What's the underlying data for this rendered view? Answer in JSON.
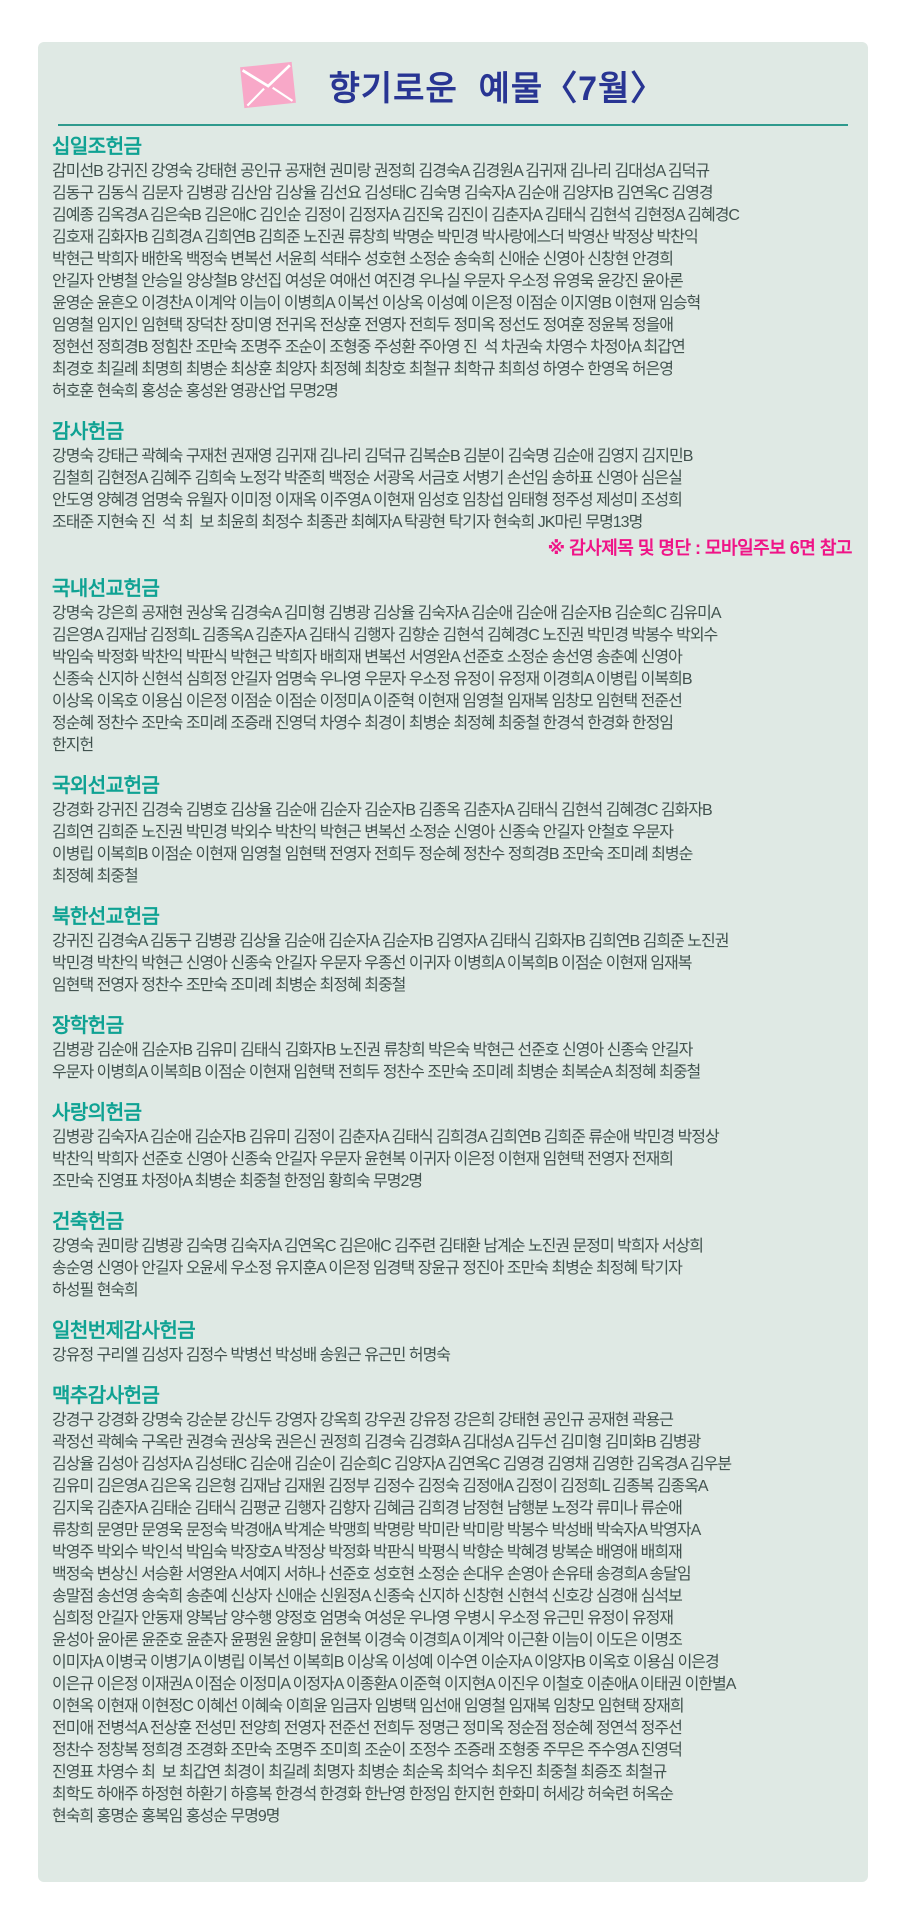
{
  "header": {
    "title": "향기로운  예물〈7월〉",
    "icon": "envelope-icon"
  },
  "colors": {
    "panel_bg": "#dfe9e4",
    "title_blue": "#283593",
    "section_teal": "#0fa293",
    "name_text": "#41524e",
    "note_pink": "#ef1487",
    "envelope_pink": "#f8a8c8"
  },
  "sections": [
    {
      "id": "tithe",
      "title": "십일조헌금",
      "lines": [
        "감미선B 강귀진 강영숙 강태현 공인규 공재현 권미랑 권정희 김경숙A 김경원A 김귀재 김나리 김대성A 김덕규",
        "김동구 김동식 김문자 김병광 김산암 김상율 김선요 김성태C 김숙명 김숙자A 김순애 김양자B 김연옥C 김영경",
        "김예종 김옥경A 김은숙B 김은애C 김인순 김정이 김정자A 김진욱 김진이 김춘자A 김태식 김현석 김현정A 김혜경C",
        "김호재 김화자B 김희경A 김희연B 김희준 노진권 류창희 박명순 박민경 박사랑에스더 박영산 박정상 박찬익",
        "박현근 박희자 배한옥 백정숙 변복선 서윤희 석태수 성호현 소정순 송숙희 신애순 신영아 신창현 안경희",
        "안길자 안병철 안승일 양상철B 양선집 여성운 여애선 여진경 우나실 우문자 우소정 유영욱 윤강진 윤아론",
        "윤영순 윤흔오 이경찬A 이계악 이늠이 이병희A 이복선 이상옥 이성예 이은정 이점순 이지영B 이현재 임승혁",
        "임영철 임지인 임현택 장덕찬 장미영 전귀옥 전상훈 전영자 전희두 정미옥 정선도 정여훈 정윤복 정을애",
        "정현선 정희경B 정힘찬 조만숙 조명주 조순이 조형중 주성환 주아영 진  석 차권숙 차영수 차정아A 최갑연",
        "최경호 최길례 최명희 최병순 최상훈 최양자 최정혜 최창호 최철규 최학규 최희성 하영수 한영옥 허은영",
        "허호훈 현숙희 홍성순 홍성완 영광산업 무명2명"
      ]
    },
    {
      "id": "thanksgiving",
      "title": "감사헌금",
      "lines": [
        "강명숙 강태근 곽혜숙 구재천 권재영 김귀재 김나리 김덕규 김복순B 김분이 김숙명 김순애 김영지 김지민B",
        "김철희 김현정A 김혜주 김희숙 노정각 박준희 백정순 서광옥 서금호 서병기 손선임 송하표 신영아 심은실",
        "안도영 양혜경 엄명숙 유월자 이미정 이재옥 이주영A 이현재 임성호 임창섭 임태형 정주성 제성미 조성희",
        "조태준 지현숙 진  석 최  보 최윤희 최정수 최종관 최혜자A 탁광현 탁기자 현숙희 JK마린 무명13명"
      ],
      "note": "※ 감사제목 및 명단 : 모바일주보 6면 참고"
    },
    {
      "id": "domestic-mission",
      "title": "국내선교헌금",
      "lines": [
        "강명숙 강은희 공재현 권상욱 김경숙A 김미형 김병광 김상율 김숙자A 김순애 김순애 김순자B 김순희C 김유미A",
        "김은영A 김재남 김정희L 김종옥A 김춘자A 김태식 김행자 김향순 김현석 김혜경C 노진권 박민경 박봉수 박외수",
        "박임숙 박정화 박찬익 박판식 박현근 박희자 배희재 변복선 서영완A 선준호 소정순 송선영 송춘예 신영아",
        "신종숙 신지하 신현석 심희정 안길자 엄명숙 우나영 우문자 우소정 유정이 유정재 이경희A 이병립 이복희B",
        "이상옥 이옥호 이용심 이은정 이점순 이점순 이정미A 이준혁 이현재 임영철 임재복 임창모 임현택 전준선",
        "정순혜 정찬수 조만숙 조미례 조증래 진영덕 차영수 최경이 최병순 최정혜 최중철 한경석 한경화 한정임",
        "한지헌"
      ]
    },
    {
      "id": "overseas-mission",
      "title": "국외선교헌금",
      "lines": [
        "강경화 강귀진 김경숙 김병호 김상율 김순애 김순자 김순자B 김종옥 김춘자A 김태식 김현석 김혜경C 김화자B",
        "김희연 김희준 노진권 박민경 박외수 박찬익 박현근 변복선 소정순 신영아 신종숙 안길자 안철호 우문자",
        "이병립 이복희B 이점순 이현재 임영철 임현택 전영자 전희두 정순혜 정찬수 정희경B 조만숙 조미례 최병순",
        "최정혜 최중철"
      ]
    },
    {
      "id": "nk-mission",
      "title": "북한선교헌금",
      "lines": [
        "강귀진 김경숙A 김동구 김병광 김상율 김순애 김순자A 김순자B 김영자A 김태식 김화자B 김희연B 김희준 노진권",
        "박민경 박찬익 박현근 신영아 신종숙 안길자 우문자 우종선 이귀자 이병희A 이복희B 이점순 이현재 임재복",
        "임현택 전영자 정찬수 조만숙 조미례 최병순 최정혜 최중철"
      ]
    },
    {
      "id": "scholarship",
      "title": "장학헌금",
      "lines": [
        "김병광 김순애 김순자B 김유미 김태식 김화자B 노진권 류창희 박은숙 박현근 선준호 신영아 신종숙 안길자",
        "우문자 이병희A 이복희B 이점순 이현재 임현택 전희두 정찬수 조만숙 조미례 최병순 최복순A 최정혜 최중철"
      ]
    },
    {
      "id": "love",
      "title": "사랑의헌금",
      "lines": [
        "김병광 김숙자A 김순애 김순자B 김유미 김정이 김춘자A 김태식 김희경A 김희연B 김희준 류순애 박민경 박정상",
        "박찬익 박희자 선준호 신영아 신종숙 안길자 우문자 윤현복 이귀자 이은정 이현재 임현택 전영자 전재희",
        "조만숙 진영표 차정아A 최병순 최중철 한정임 황희숙 무명2명"
      ]
    },
    {
      "id": "building",
      "title": "건축헌금",
      "lines": [
        "강영숙 권미랑 김병광 김숙명 김숙자A 김연옥C 김은애C 김주련 김태환 남계순 노진권 문정미 박희자 서상희",
        "송순영 신영아 안길자 오윤세 우소정 유지훈A 이은정 임경택 장윤규 정진아 조만숙 최병순 최정혜 탁기자",
        "하성필 현숙희"
      ]
    },
    {
      "id": "burnt-1000",
      "title": "일천번제감사헌금",
      "lines": [
        "강유정 구리엘 김성자 김정수 박병선 박성배 송원근 유근민 허명숙"
      ]
    },
    {
      "id": "harvest",
      "title": "맥추감사헌금",
      "lines": [
        "강경구 강경화 강명숙 강순분 강신두 강영자 강옥희 강우권 강유정 강은희 강태현 공인규 공재현 곽용근",
        "곽정선 곽혜숙 구옥란 권경숙 권상욱 권은신 권정희 김경숙 김경화A 김대성A 김두선 김미형 김미화B 김병광",
        "김상율 김성아 김성자A 김성태C 김순애 김순이 김순희C 김양자A 김연옥C 김영경 김영채 김영한 김옥경A 김우분",
        "김유미 김은영A 김은옥 김은형 김재남 김재원 김정부 김정수 김정숙 김정애A 김정이 김정희L 김종복 김종옥A",
        "김지욱 김춘자A 김태순 김태식 김평균 김행자 김향자 김혜금 김희경 남정현 남행분 노정각 류미나 류순애",
        "류창희 문영만 문영욱 문정숙 박경애A 박계순 박맹희 박명랑 박미란 박미랑 박봉수 박성배 박숙자A 박영자A",
        "박영주 박외수 박인석 박임숙 박장호A 박정상 박정화 박판식 박평식 박향순 박혜경 방복순 배영애 배희재",
        "백정숙 변상신 서승환 서영완A 서예지 서하나 선준호 성호현 소정순 손대우 손영아 손유태 송경희A 송달임",
        "송말점 송선영 송숙희 송춘예 신상자 신애순 신원정A 신종숙 신지하 신창현 신현석 신호강 심경애 심석보",
        "심희정 안길자 안동재 양복남 양수행 양정호 엄명숙 여성운 우나영 우병시 우소정 유근민 유정이 유정재",
        "윤성아 윤아론 윤준호 윤춘자 윤평원 윤향미 윤현복 이경숙 이경희A 이계악 이근환 이늠이 이도은 이명조",
        "이미자A 이병국 이병기A 이병립 이복선 이복희B 이상옥 이성예 이수연 이순자A 이양자B 이옥호 이용심 이은경",
        "이은규 이은정 이재권A 이점순 이정미A 이정자A 이종환A 이준혁 이지현A 이진우 이철호 이춘애A 이태권 이한별A",
        "이현옥 이현재 이현정C 이혜선 이혜숙 이희윤 임금자 임병택 임선애 임영철 임재복 임창모 임현택 장재희",
        "전미애 전병석A 전상훈 전성민 전양희 전영자 전준선 전희두 정명근 정미옥 정순점 정순혜 정연석 정주선",
        "정찬수 정창복 정희경 조경화 조만숙 조명주 조미희 조순이 조정수 조증래 조형중 주무은 주수영A 진영덕",
        "진영표 차영수 최  보 최갑연 최경이 최길례 최명자 최병순 최순옥 최억수 최우진 최중철 최증조 최철규",
        "최학도 하애주 하정현 하환기 하흥복 한경석 한경화 한난영 한정임 한지헌 한화미 허세강 허숙련 허옥순",
        "현숙희 홍명순 홍복임 홍성순 무명9명"
      ]
    }
  ]
}
